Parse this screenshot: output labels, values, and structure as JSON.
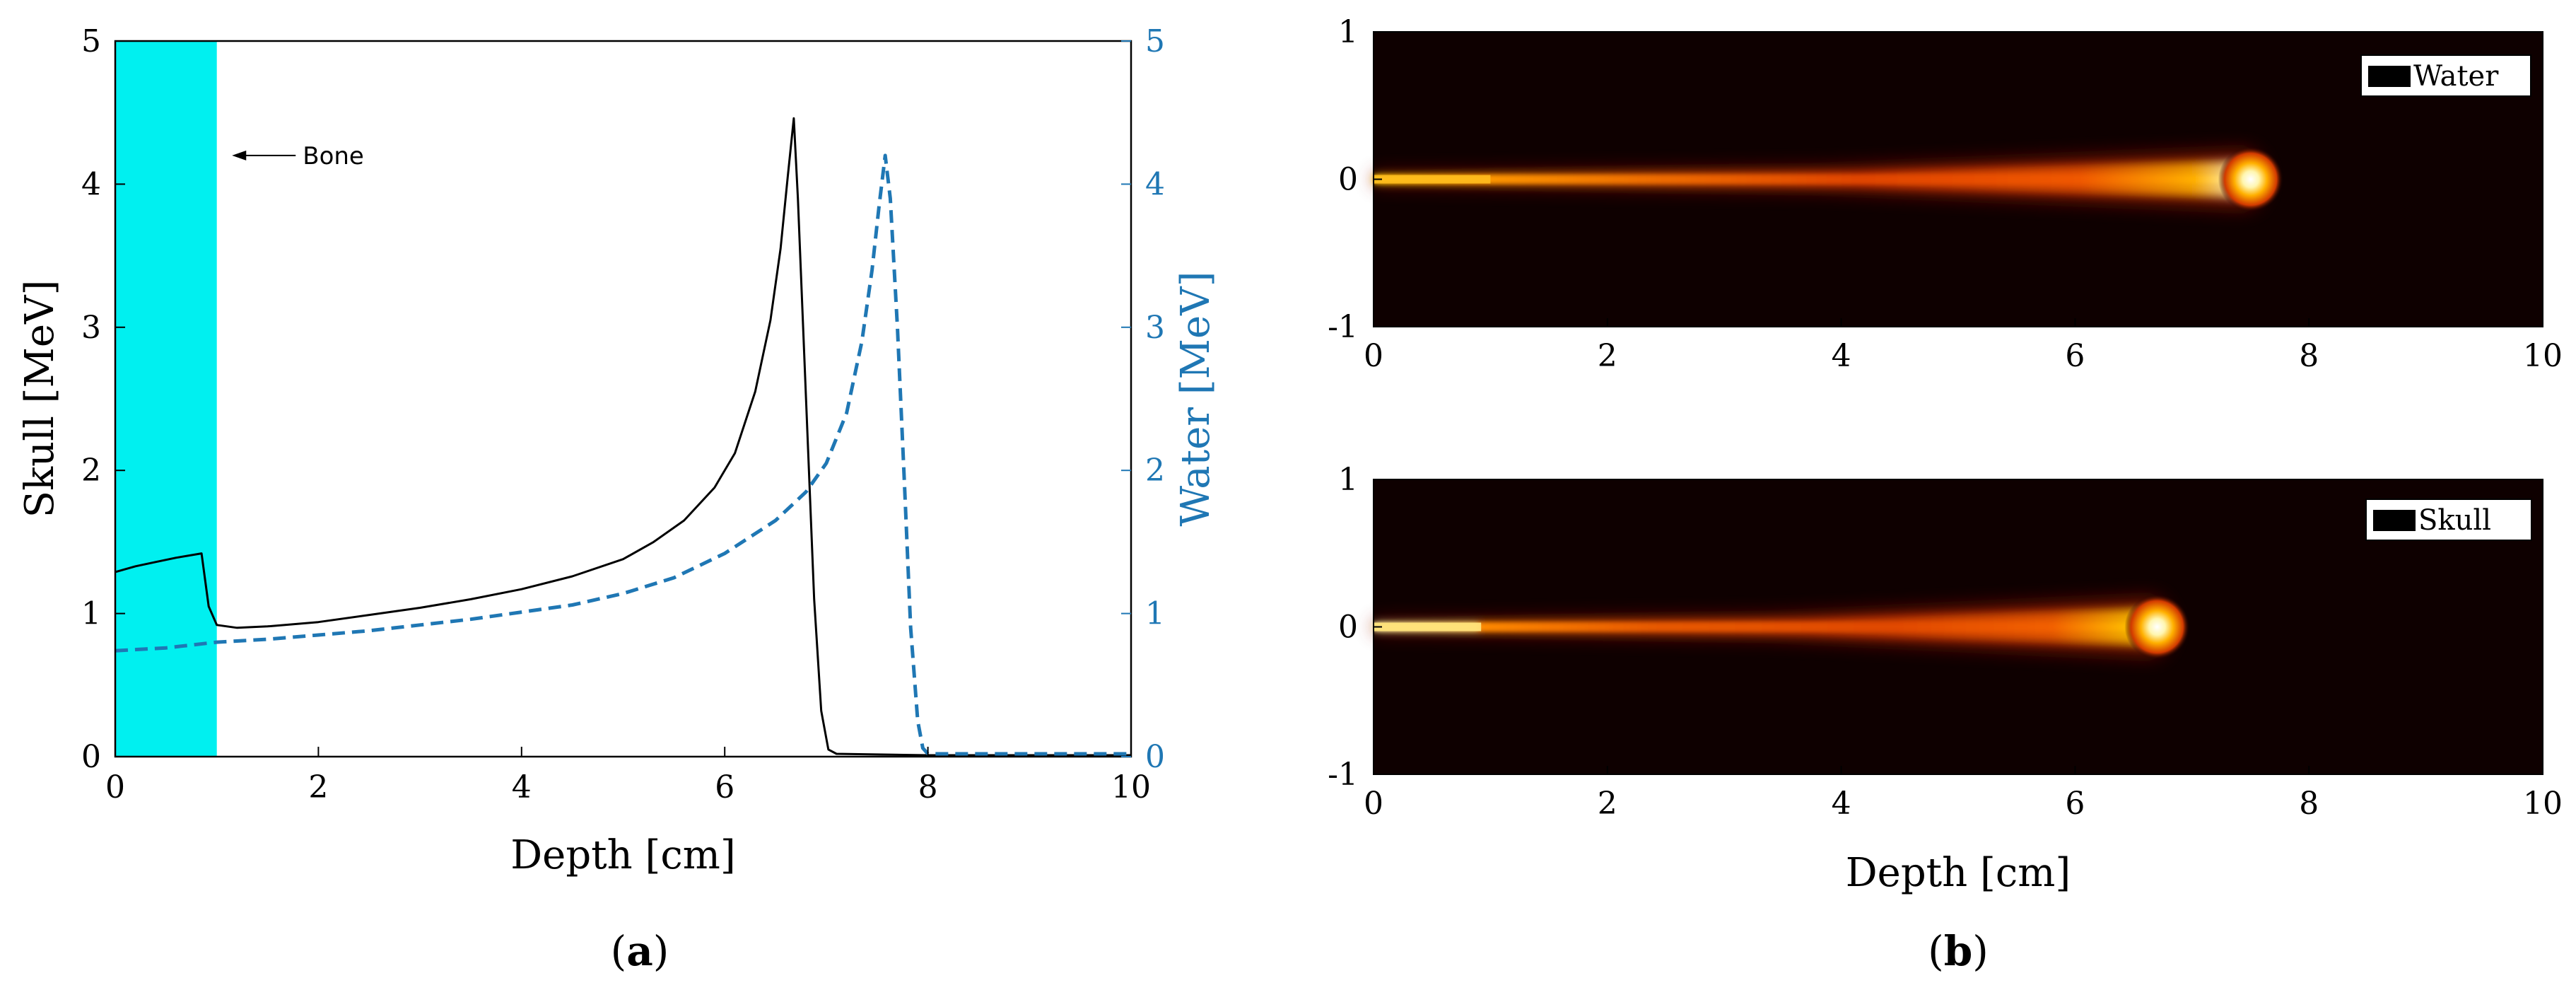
{
  "chart_data": [
    {
      "type": "line",
      "xlabel": "Depth [cm]",
      "ylabel": "Skull [MeV]",
      "y2label": "Water [MeV]",
      "xlim": [
        0,
        10
      ],
      "ylim": [
        0,
        5
      ],
      "y2lim": [
        0,
        5
      ],
      "xticks": [
        "0",
        "2",
        "4",
        "6",
        "8",
        "10"
      ],
      "yticks": [
        "0",
        "1",
        "2",
        "3",
        "4",
        "5"
      ],
      "y2ticks": [
        "0",
        "1",
        "2",
        "3",
        "4",
        "5"
      ],
      "grid": false,
      "caption_letter": "a",
      "shaded_region": {
        "x": [
          0,
          1
        ],
        "color": "#00f0f0"
      },
      "annotation": {
        "text": "Bone",
        "x": 1.15,
        "y": 4.2
      },
      "series": [
        {
          "name": "Skull",
          "axis": "left",
          "color": "#000000",
          "style": "solid",
          "x": [
            0,
            0.2,
            0.4,
            0.6,
            0.85,
            0.92,
            1.0,
            1.2,
            1.5,
            2.0,
            2.5,
            3.0,
            3.5,
            4.0,
            4.5,
            5.0,
            5.3,
            5.6,
            5.9,
            6.1,
            6.3,
            6.45,
            6.55,
            6.62,
            6.68,
            6.72,
            6.8,
            6.88,
            6.95,
            7.02,
            7.1,
            8,
            9,
            10
          ],
          "y": [
            1.29,
            1.33,
            1.36,
            1.39,
            1.42,
            1.05,
            0.92,
            0.9,
            0.91,
            0.94,
            0.99,
            1.04,
            1.1,
            1.17,
            1.26,
            1.38,
            1.5,
            1.65,
            1.88,
            2.12,
            2.55,
            3.05,
            3.55,
            4.05,
            4.46,
            3.9,
            2.5,
            1.1,
            0.32,
            0.05,
            0.02,
            0.01,
            0.01,
            0.01
          ]
        },
        {
          "name": "Water",
          "axis": "right",
          "color": "#1f77b4",
          "style": "dashed",
          "x": [
            0,
            0.5,
            1.0,
            1.5,
            2.0,
            2.5,
            3.0,
            3.5,
            4.0,
            4.5,
            5.0,
            5.5,
            6.0,
            6.5,
            6.8,
            7.0,
            7.2,
            7.35,
            7.45,
            7.52,
            7.58,
            7.63,
            7.7,
            7.77,
            7.83,
            7.9,
            7.95,
            8.0,
            9,
            10
          ],
          "y": [
            0.74,
            0.76,
            0.8,
            0.82,
            0.85,
            0.88,
            0.92,
            0.96,
            1.01,
            1.06,
            1.14,
            1.25,
            1.42,
            1.65,
            1.85,
            2.05,
            2.4,
            2.9,
            3.4,
            3.85,
            4.2,
            3.9,
            3.0,
            1.9,
            0.9,
            0.25,
            0.06,
            0.02,
            0.02,
            0.02
          ]
        }
      ]
    },
    {
      "type": "heatmap",
      "xlabel": "",
      "xlim": [
        0,
        10
      ],
      "ylim": [
        -1,
        1
      ],
      "xticks": [
        "0",
        "2",
        "4",
        "6",
        "8",
        "10"
      ],
      "yticks": [
        "-1",
        "0",
        "1"
      ],
      "legend": "Water",
      "legend_position": "top-right",
      "colormap": "hot",
      "beam": {
        "entrance_end": 1.0,
        "bragg_peak": 7.55,
        "intensity_entrance": 0.62
      }
    },
    {
      "type": "heatmap",
      "xlabel": "Depth [cm]",
      "xlim": [
        0,
        10
      ],
      "ylim": [
        -1,
        1
      ],
      "xticks": [
        "0",
        "2",
        "4",
        "6",
        "8",
        "10"
      ],
      "yticks": [
        "-1",
        "0",
        "1"
      ],
      "legend": "Skull",
      "legend_position": "top-right",
      "colormap": "hot",
      "beam": {
        "entrance_end": 0.92,
        "bragg_peak": 6.75,
        "intensity_entrance": 0.85
      }
    }
  ],
  "captions": {
    "a": "(a)",
    "b": "(b)"
  }
}
